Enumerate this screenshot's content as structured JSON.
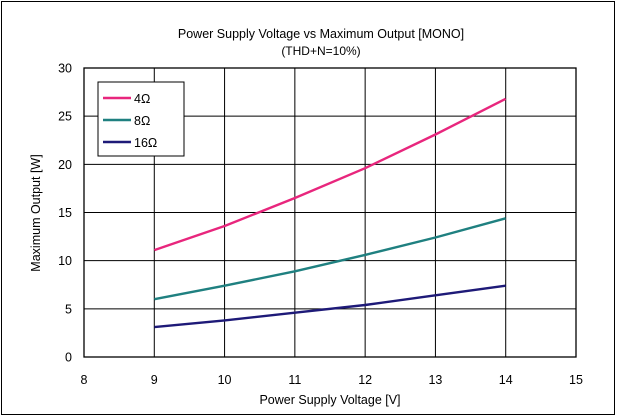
{
  "chart_data": {
    "type": "line",
    "title": "Power Supply Voltage vs Maximum Output [MONO]",
    "subtitle": "(THD+N=10%)",
    "xlabel": "Power Supply Voltage [V]",
    "ylabel": "Maximum Output [W]",
    "xlim": [
      8,
      15
    ],
    "ylim": [
      0,
      30
    ],
    "xticks": [
      8,
      9,
      10,
      11,
      12,
      13,
      14,
      15
    ],
    "yticks": [
      0,
      5,
      10,
      15,
      20,
      25,
      30
    ],
    "grid": true,
    "legend_position": "top-left",
    "series": [
      {
        "name": "4Ω",
        "color": "#e8267d",
        "x": [
          9,
          10,
          11,
          12,
          13,
          14
        ],
        "y": [
          11.1,
          13.6,
          16.5,
          19.6,
          23.1,
          26.8
        ]
      },
      {
        "name": "8Ω",
        "color": "#1f8080",
        "x": [
          9,
          10,
          11,
          12,
          13,
          14
        ],
        "y": [
          6.0,
          7.4,
          8.9,
          10.6,
          12.4,
          14.4
        ]
      },
      {
        "name": "16Ω",
        "color": "#1e1a78",
        "x": [
          9,
          10,
          11,
          12,
          13,
          14
        ],
        "y": [
          3.1,
          3.8,
          4.6,
          5.4,
          6.4,
          7.4
        ]
      }
    ]
  }
}
